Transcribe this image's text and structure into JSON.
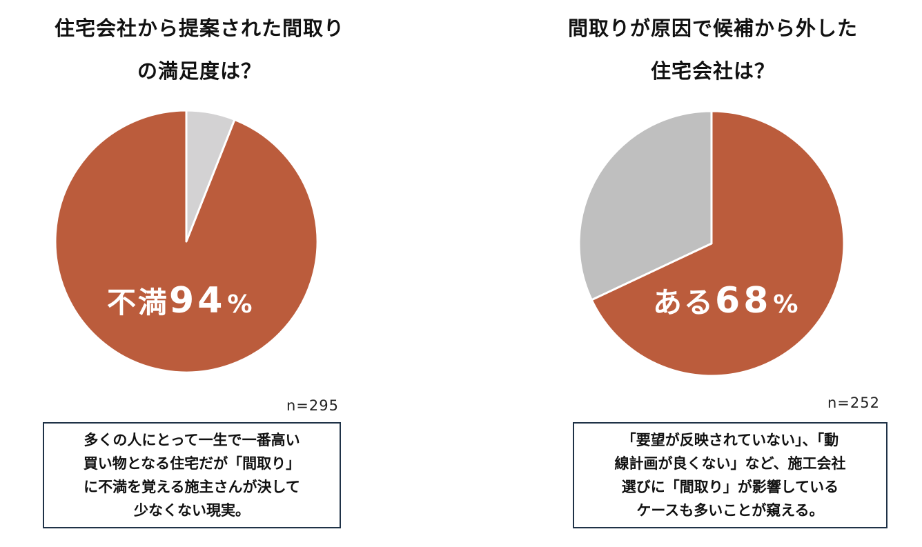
{
  "colors": {
    "accent": "#BB5C3C",
    "remainder_left": "#D3D2D3",
    "remainder_right": "#BFBFBF",
    "box_border": "#1F3247"
  },
  "panels": [
    {
      "title_lines": [
        "住宅会社から提案された間取り",
        "の満足度は？"
      ],
      "label_word": "不満",
      "label_number": "94",
      "label_unit": "%",
      "sample_size": "n=295",
      "note_lines": [
        "多くの人にとって一生で一番高い",
        "買い物となる住宅だが「間取り」",
        "に不満を覚える施主さんが決して",
        "少なくない現実。"
      ]
    },
    {
      "title_lines": [
        "間取りが原因で候補から外した",
        "住宅会社は？"
      ],
      "label_word": "ある",
      "label_number": "68",
      "label_unit": "%",
      "sample_size": "n=252",
      "note_lines": [
        "「要望が反映されていない」、「動",
        "線計画が良くない」など、施工会社",
        "選びに「間取り」が影響している",
        "ケースも多いことが窺える。"
      ]
    }
  ],
  "chart_data": [
    {
      "type": "pie",
      "title": "住宅会社から提案された間取りの満足度は？",
      "slices": [
        {
          "label": "不満",
          "value": 94,
          "color": "#BB5C3C"
        },
        {
          "label": "",
          "value": 6,
          "color": "#D3D2D3"
        }
      ],
      "start_angle_deg": 0,
      "direction": "counterclockwise",
      "highlighted_label": "不満94%",
      "n": 295
    },
    {
      "type": "pie",
      "title": "間取りが原因で候補から外した住宅会社は？",
      "slices": [
        {
          "label": "ある",
          "value": 68,
          "color": "#BB5C3C"
        },
        {
          "label": "",
          "value": 32,
          "color": "#BFBFBF"
        }
      ],
      "start_angle_deg": 0,
      "direction": "clockwise",
      "highlighted_label": "ある68%",
      "n": 252
    }
  ]
}
